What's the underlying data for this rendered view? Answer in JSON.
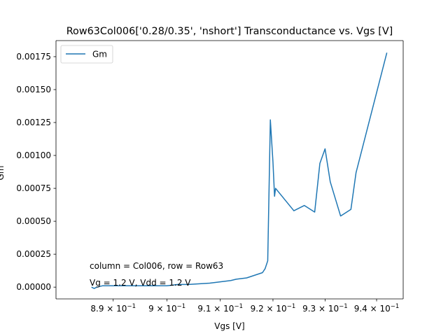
{
  "chart_data": {
    "type": "line",
    "title": "Row63Col006['0.28/0.35', 'nshort'] Transconductance vs. Vgs [V]",
    "xlabel": "Vgs [V]",
    "ylabel": "Gm",
    "xscale": "log",
    "xlim": [
      0.8795,
      0.9452
    ],
    "ylim": [
      -8.94e-05,
      0.001872
    ],
    "grid": false,
    "legend_position": "top-left",
    "series": [
      {
        "name": "Gm",
        "color": "#1f77b4",
        "x": [
          0.886,
          0.8865,
          0.887,
          0.888,
          0.89,
          0.893,
          0.896,
          0.9,
          0.902,
          0.904,
          0.908,
          0.91,
          0.912,
          0.913,
          0.915,
          0.9165,
          0.918,
          0.9185,
          0.919,
          0.9195,
          0.92,
          0.9203,
          0.9205,
          0.9207,
          0.924,
          0.926,
          0.928,
          0.929,
          0.93,
          0.931,
          0.933,
          0.935,
          0.936,
          0.942
        ],
        "y": [
          0.0,
          -1e-05,
          0.0,
          1e-05,
          1e-05,
          1e-05,
          1e-05,
          1e-05,
          2e-05,
          2e-05,
          3e-05,
          4e-05,
          5e-05,
          6e-05,
          7e-05,
          9e-05,
          0.00011,
          0.00014,
          0.0002,
          0.00127,
          0.00095,
          0.00069,
          0.00075,
          0.00074,
          0.00058,
          0.00062,
          0.00057,
          0.00094,
          0.00105,
          0.0008,
          0.00054,
          0.00059,
          0.00087,
          0.00178
        ]
      }
    ],
    "x_ticks": [
      {
        "value": 0.89,
        "mantissa": "8.9",
        "exp": "−1"
      },
      {
        "value": 0.9,
        "mantissa": "9",
        "exp": "−1"
      },
      {
        "value": 0.91,
        "mantissa": "9.1",
        "exp": "−1"
      },
      {
        "value": 0.92,
        "mantissa": "9.2",
        "exp": "−1"
      },
      {
        "value": 0.93,
        "mantissa": "9.3",
        "exp": "−1"
      },
      {
        "value": 0.94,
        "mantissa": "9.4",
        "exp": "−1"
      }
    ],
    "y_ticks": [
      {
        "value": 0.0,
        "label": "0.00000"
      },
      {
        "value": 0.00025,
        "label": "0.00025"
      },
      {
        "value": 0.0005,
        "label": "0.00050"
      },
      {
        "value": 0.00075,
        "label": "0.00075"
      },
      {
        "value": 0.001,
        "label": "0.00100"
      },
      {
        "value": 0.00125,
        "label": "0.00125"
      },
      {
        "value": 0.0015,
        "label": "0.00150"
      },
      {
        "value": 0.00175,
        "label": "0.00175"
      }
    ],
    "annotations": [
      {
        "text": "column = Col006, row = Row63"
      },
      {
        "text": "Vg = 1.2 V, Vdd = 1.2 V"
      }
    ]
  }
}
